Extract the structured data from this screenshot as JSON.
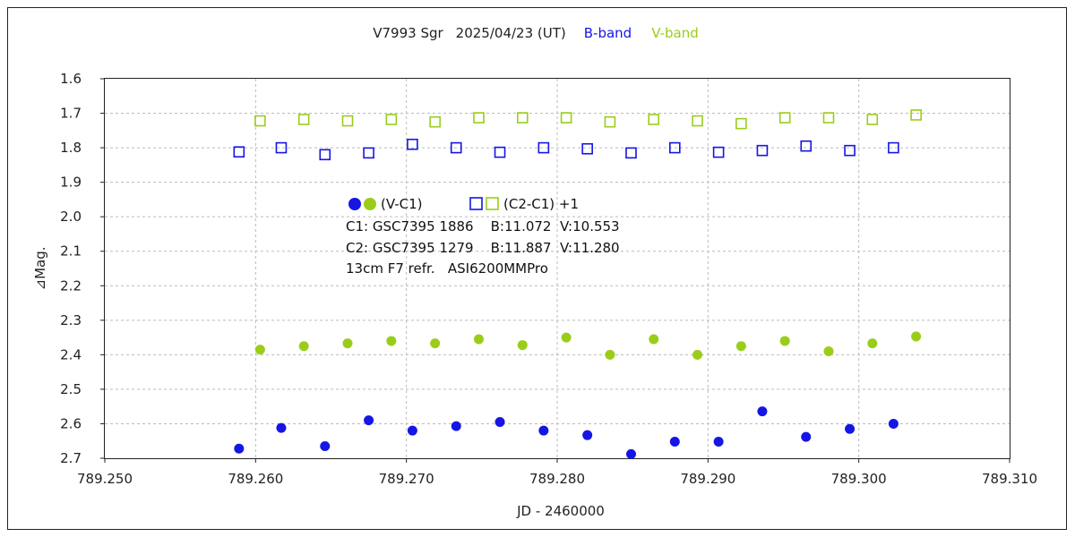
{
  "title": {
    "object": "V7993 Sgr",
    "date": "2025/04/23 (UT)",
    "b_band_label": "B-band",
    "v_band_label": "V-band"
  },
  "colors": {
    "b_band": "#1515e6",
    "v_band": "#9acd1a",
    "grid": "#bbbbbb",
    "frame": "#222222",
    "text": "#222222"
  },
  "legend": {
    "filled_label": "(V-C1)",
    "open_label": "(C2-C1) +1"
  },
  "notes": [
    "C1: GSC7395 1886    B:11.072  V:10.553",
    "C2: GSC7395 1279    B:11.887  V:11.280",
    "13cm F7 refr.   ASI6200MMPro"
  ],
  "chart_data": {
    "type": "scatter",
    "xlabel": "JD - 2460000",
    "ylabel": "⊿Mag.",
    "xlim": [
      789.25,
      789.31
    ],
    "ylim": [
      1.6,
      2.7
    ],
    "y_inverted": true,
    "grid": true,
    "x_ticks": [
      "789.250",
      "789.260",
      "789.270",
      "789.280",
      "789.290",
      "789.300",
      "789.310"
    ],
    "y_ticks": [
      "1.6",
      "1.7",
      "1.8",
      "1.9",
      "2.0",
      "2.1",
      "2.2",
      "2.3",
      "2.4",
      "2.5",
      "2.6",
      "2.7"
    ],
    "series": [
      {
        "name": "(V-C1) B-band",
        "band": "B",
        "marker": "filled",
        "color": "#1515e6",
        "x": [
          789.2589,
          789.2617,
          789.2646,
          789.2675,
          789.2704,
          789.2733,
          789.2762,
          789.2791,
          789.282,
          789.2849,
          789.2878,
          789.2907,
          789.2936,
          789.2965,
          789.2994,
          789.3023
        ],
        "y": [
          2.672,
          2.612,
          2.665,
          2.59,
          2.62,
          2.607,
          2.595,
          2.62,
          2.633,
          2.688,
          2.652,
          2.652,
          2.564,
          2.638,
          2.615,
          2.6
        ]
      },
      {
        "name": "(V-C1) V-band",
        "band": "V",
        "marker": "filled",
        "color": "#9acd1a",
        "x": [
          789.2603,
          789.2632,
          789.2661,
          789.269,
          789.2719,
          789.2748,
          789.2777,
          789.2806,
          789.2835,
          789.2864,
          789.2893,
          789.2922,
          789.2951,
          789.298,
          789.3009,
          789.3038
        ],
        "y": [
          2.385,
          2.375,
          2.367,
          2.36,
          2.367,
          2.355,
          2.372,
          2.35,
          2.4,
          2.355,
          2.4,
          2.375,
          2.36,
          2.39,
          2.367,
          2.347
        ]
      },
      {
        "name": "(C2-C1)+1 B-band",
        "band": "B",
        "marker": "open",
        "color": "#1515e6",
        "x": [
          789.2589,
          789.2617,
          789.2646,
          789.2675,
          789.2704,
          789.2733,
          789.2762,
          789.2791,
          789.282,
          789.2849,
          789.2878,
          789.2907,
          789.2936,
          789.2965,
          789.2994,
          789.3023
        ],
        "y": [
          1.812,
          1.8,
          1.82,
          1.815,
          1.79,
          1.8,
          1.813,
          1.8,
          1.803,
          1.815,
          1.8,
          1.813,
          1.808,
          1.795,
          1.808,
          1.8
        ]
      },
      {
        "name": "(C2-C1)+1 V-band",
        "band": "V",
        "marker": "open",
        "color": "#9acd1a",
        "x": [
          789.2603,
          789.2632,
          789.2661,
          789.269,
          789.2719,
          789.2748,
          789.2777,
          789.2806,
          789.2835,
          789.2864,
          789.2893,
          789.2922,
          789.2951,
          789.298,
          789.3009,
          789.3038
        ],
        "y": [
          1.722,
          1.718,
          1.722,
          1.718,
          1.725,
          1.713,
          1.713,
          1.713,
          1.725,
          1.718,
          1.722,
          1.73,
          1.713,
          1.713,
          1.718,
          1.705
        ]
      }
    ]
  }
}
